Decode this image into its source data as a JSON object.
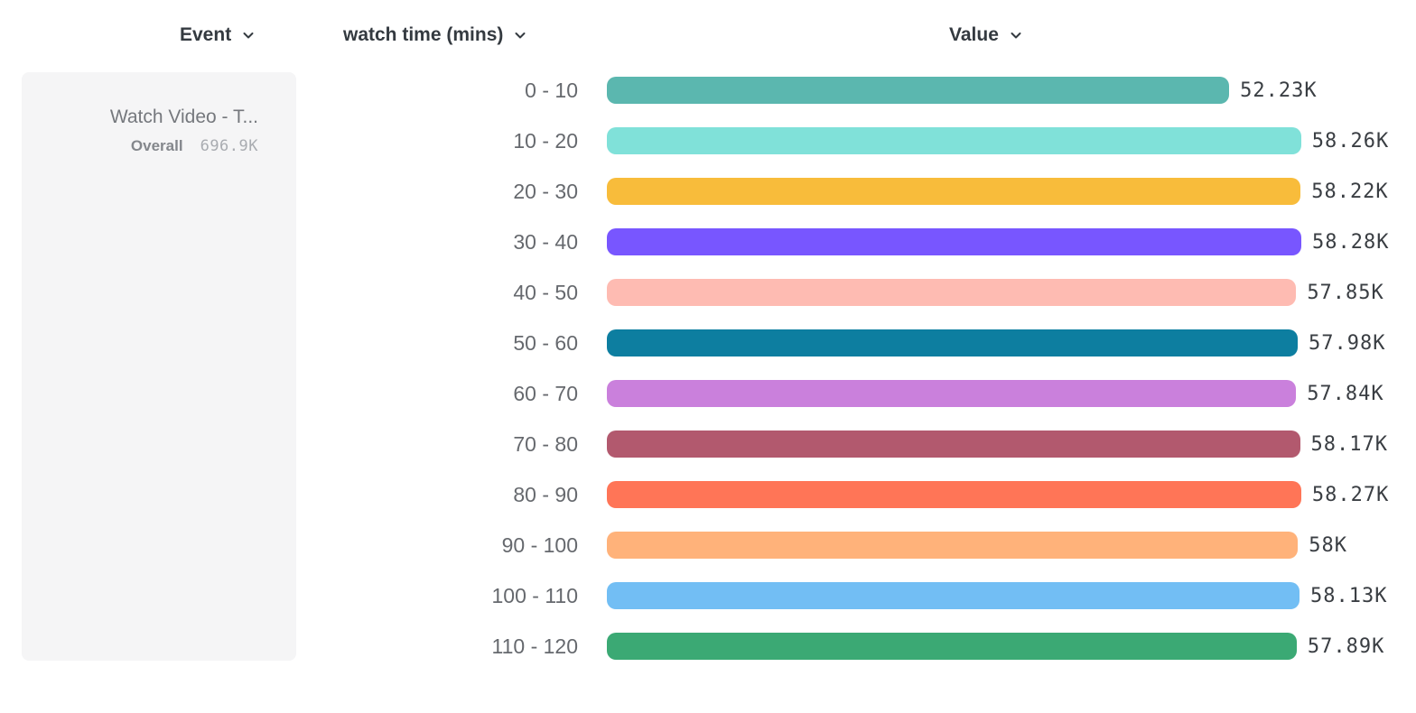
{
  "columns": [
    {
      "label": "Event"
    },
    {
      "label": "watch time (mins)"
    },
    {
      "label": "Value"
    }
  ],
  "legend": {
    "event_name": "Watch Video - T...",
    "overall_label": "Overall",
    "overall_value": "696.9K"
  },
  "chart_data": {
    "type": "bar",
    "orientation": "horizontal",
    "title": "",
    "xlabel": "watch time (mins)",
    "ylabel": "Value",
    "categories": [
      "0 - 10",
      "10 - 20",
      "20 - 30",
      "30 - 40",
      "40 - 50",
      "50 - 60",
      "60 - 70",
      "70 - 80",
      "80 - 90",
      "90 - 100",
      "100 - 110",
      "110 - 120"
    ],
    "values": [
      52230,
      58260,
      58220,
      58280,
      57850,
      57980,
      57840,
      58170,
      58270,
      58000,
      58130,
      57890
    ],
    "value_labels": [
      "52.23K",
      "58.26K",
      "58.22K",
      "58.28K",
      "57.85K",
      "57.98K",
      "57.84K",
      "58.17K",
      "58.27K",
      "58K",
      "58.13K",
      "57.89K"
    ],
    "bar_colors": [
      "#5BB7AF",
      "#80E1D9",
      "#F8BC3B",
      "#7856FF",
      "#FEBBB2",
      "#0D7EA0",
      "#CA80DC",
      "#B2596E",
      "#FF7557",
      "#FFB27A",
      "#72BEF4",
      "#3BA974"
    ],
    "xlim": [
      0,
      58280
    ],
    "grid": false,
    "legend_position": "left",
    "value_label_color": "#3a3e43",
    "category_label_color": "#66696e"
  }
}
